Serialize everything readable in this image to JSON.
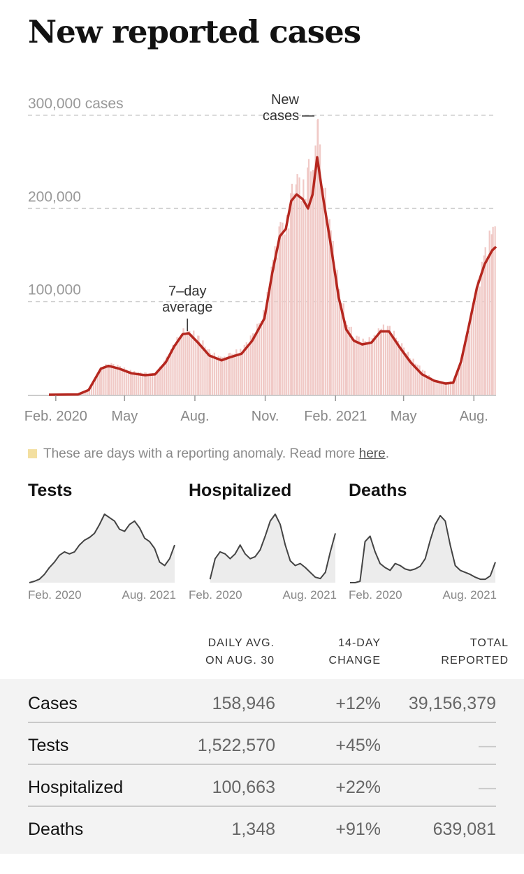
{
  "title": "New reported cases",
  "chart_data": [
    {
      "type": "bar",
      "title": "",
      "series": [
        {
          "name": "New cases",
          "kind": "bar",
          "x": [
            "2020-01-23",
            "2020-03-01",
            "2020-03-15",
            "2020-03-31",
            "2020-04-10",
            "2020-04-24",
            "2020-05-10",
            "2020-05-28",
            "2020-06-10",
            "2020-06-24",
            "2020-07-05",
            "2020-07-16",
            "2020-07-24",
            "2020-08-05",
            "2020-08-20",
            "2020-09-05",
            "2020-09-15",
            "2020-10-01",
            "2020-10-15",
            "2020-10-31",
            "2020-11-10",
            "2020-11-20",
            "2020-11-28",
            "2020-12-05",
            "2020-12-12",
            "2020-12-20",
            "2020-12-27",
            "2021-01-02",
            "2021-01-08",
            "2021-01-15",
            "2021-01-25",
            "2021-02-05",
            "2021-02-15",
            "2021-02-25",
            "2021-03-08",
            "2021-03-20",
            "2021-04-01",
            "2021-04-12",
            "2021-04-25",
            "2021-05-10",
            "2021-05-25",
            "2021-06-10",
            "2021-06-25",
            "2021-07-05",
            "2021-07-15",
            "2021-07-25",
            "2021-08-05",
            "2021-08-15",
            "2021-08-25",
            "2021-08-30"
          ],
          "values": [
            0,
            300,
            5000,
            28000,
            33000,
            29000,
            24000,
            22000,
            22000,
            38000,
            55000,
            66000,
            67000,
            60000,
            44000,
            38000,
            42000,
            48000,
            62000,
            88000,
            140000,
            175000,
            180000,
            210000,
            225000,
            215000,
            235000,
            240000,
            280000,
            220000,
            170000,
            110000,
            75000,
            62000,
            56000,
            58000,
            70000,
            70000,
            55000,
            38000,
            26000,
            14000,
            12000,
            15000,
            35000,
            70000,
            115000,
            150000,
            175000,
            190000
          ]
        },
        {
          "name": "7-day average",
          "kind": "line",
          "x": [
            "2020-01-23",
            "2020-03-01",
            "2020-03-15",
            "2020-03-31",
            "2020-04-10",
            "2020-04-24",
            "2020-05-10",
            "2020-05-28",
            "2020-06-10",
            "2020-06-24",
            "2020-07-05",
            "2020-07-16",
            "2020-07-24",
            "2020-08-05",
            "2020-08-20",
            "2020-09-05",
            "2020-09-15",
            "2020-10-01",
            "2020-10-15",
            "2020-10-31",
            "2020-11-10",
            "2020-11-20",
            "2020-11-28",
            "2020-12-05",
            "2020-12-12",
            "2020-12-20",
            "2020-12-27",
            "2021-01-02",
            "2021-01-08",
            "2021-01-15",
            "2021-01-25",
            "2021-02-05",
            "2021-02-15",
            "2021-02-25",
            "2021-03-08",
            "2021-03-20",
            "2021-04-01",
            "2021-04-12",
            "2021-04-25",
            "2021-05-10",
            "2021-05-25",
            "2021-06-10",
            "2021-06-25",
            "2021-07-05",
            "2021-07-15",
            "2021-07-25",
            "2021-08-05",
            "2021-08-15",
            "2021-08-25",
            "2021-08-30"
          ],
          "values": [
            0,
            300,
            5000,
            28000,
            31000,
            28000,
            23000,
            21000,
            22000,
            35000,
            52000,
            65000,
            66000,
            56000,
            42000,
            37000,
            40000,
            44000,
            58000,
            82000,
            130000,
            170000,
            178000,
            208000,
            215000,
            210000,
            200000,
            215000,
            255000,
            215000,
            165000,
            105000,
            70000,
            58000,
            54000,
            56000,
            68000,
            68000,
            52000,
            35000,
            22000,
            15000,
            12000,
            13000,
            35000,
            72000,
            115000,
            140000,
            155000,
            158946
          ]
        }
      ],
      "ylim": [
        0,
        300000
      ],
      "y_ticks": [
        "300,000 cases",
        "200,000",
        "100,000"
      ],
      "x_ticks": [
        "Feb. 2020",
        "May",
        "Aug.",
        "Nov.",
        "Feb. 2021",
        "May",
        "Aug."
      ],
      "annotations": {
        "new_cases": {
          "line1": "New",
          "line2": "cases",
          "x": "2021-01-08"
        },
        "seven_day": {
          "line1": "7–day",
          "line2": "average",
          "x": "2020-07-24"
        }
      },
      "grid": true,
      "colors": {
        "bar": "#f0c9c6",
        "line": "#b5271f",
        "grid": "#cfcfcf",
        "anomaly": "#f3dfa0"
      }
    },
    {
      "type": "area",
      "title": "Tests",
      "x_ticks": [
        "Feb. 2020",
        "Aug. 2021"
      ],
      "values": [
        0,
        0.02,
        0.05,
        0.12,
        0.22,
        0.3,
        0.4,
        0.45,
        0.42,
        0.45,
        0.55,
        0.62,
        0.66,
        0.72,
        0.85,
        1.0,
        0.95,
        0.9,
        0.78,
        0.75,
        0.85,
        0.9,
        0.8,
        0.65,
        0.6,
        0.5,
        0.3,
        0.25,
        0.35,
        0.55
      ]
    },
    {
      "type": "area",
      "title": "Hospitalized",
      "x_ticks": [
        "Feb. 2020",
        "Aug. 2021"
      ],
      "values": [
        null,
        null,
        null,
        null,
        0.05,
        0.35,
        0.45,
        0.42,
        0.35,
        0.42,
        0.55,
        0.42,
        0.35,
        0.38,
        0.48,
        0.68,
        0.9,
        1.0,
        0.85,
        0.55,
        0.32,
        0.25,
        0.28,
        0.22,
        0.15,
        0.08,
        0.06,
        0.15,
        0.45,
        0.72
      ]
    },
    {
      "type": "area",
      "title": "Deaths",
      "x_ticks": [
        "Feb. 2020",
        "Aug. 2021"
      ],
      "values": [
        0,
        0,
        0.02,
        0.6,
        0.68,
        0.45,
        0.28,
        0.22,
        0.18,
        0.28,
        0.25,
        0.2,
        0.18,
        0.2,
        0.24,
        0.35,
        0.62,
        0.85,
        0.98,
        0.9,
        0.55,
        0.25,
        0.18,
        0.15,
        0.12,
        0.08,
        0.05,
        0.05,
        0.1,
        0.3
      ]
    }
  ],
  "legend": {
    "text": "These are days with a reporting anomaly. Read more ",
    "link": "here",
    "end": "."
  },
  "table": {
    "headers": [
      "DAILY AVG.\nON AUG. 30",
      "14-DAY\nCHANGE",
      "TOTAL\nREPORTED"
    ],
    "rows": [
      {
        "label": "Cases",
        "avg": "158,946",
        "change": "+12%",
        "total": "39,156,379"
      },
      {
        "label": "Tests",
        "avg": "1,522,570",
        "change": "+45%",
        "total": "—"
      },
      {
        "label": "Hospitalized",
        "avg": "100,663",
        "change": "+22%",
        "total": "—"
      },
      {
        "label": "Deaths",
        "avg": "1,348",
        "change": "+91%",
        "total": "639,081"
      }
    ]
  }
}
